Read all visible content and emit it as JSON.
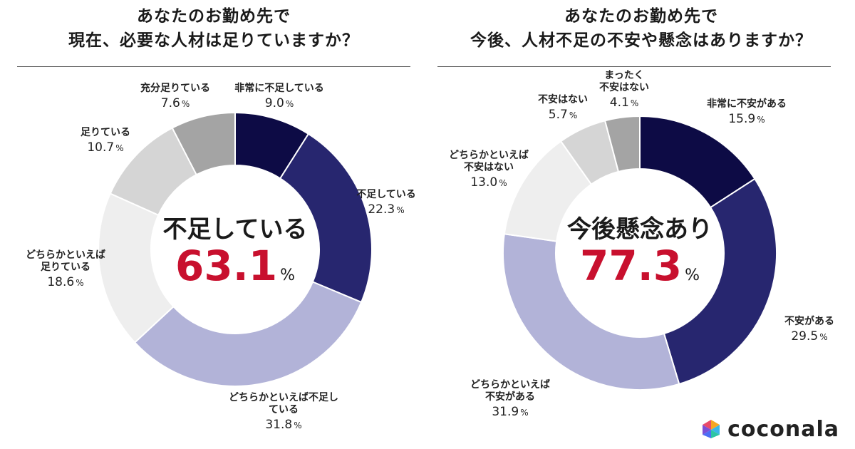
{
  "left": {
    "title_line1": "あなたのお勤め先で",
    "title_line2": "現在、必要な人材は足りていますか？",
    "center_label": "不足している",
    "center_value": "63.1",
    "center_unit": "%"
  },
  "right": {
    "title_line1": "あなたのお勤め先で",
    "title_line2": "今後、人材不足の不安や懸念はありますか？",
    "center_label": "今後懸念あり",
    "center_value": "77.3",
    "center_unit": "%"
  },
  "brand": {
    "name": "coconala"
  },
  "chart_data": [
    {
      "type": "pie",
      "variant": "donut",
      "title": "あなたのお勤め先で 現在、必要な人材は足りていますか？",
      "unit": "%",
      "slices": [
        {
          "label": "非常に不足している",
          "value": 9.0,
          "color": "#0d0b45"
        },
        {
          "label": "不足している",
          "value": 22.3,
          "color": "#27266f"
        },
        {
          "label": "どちらかといえば不足している",
          "value": 31.8,
          "color": "#b2b3d8"
        },
        {
          "label": "どちらかといえば足りている",
          "value": 18.6,
          "color": "#eeeeee"
        },
        {
          "label": "足りている",
          "value": 10.7,
          "color": "#d5d5d5"
        },
        {
          "label": "充分足りている",
          "value": 7.6,
          "color": "#a4a4a4"
        }
      ],
      "display_labels": [
        [
          "非常に不足している"
        ],
        [
          "不足している"
        ],
        [
          "どちらかといえば不足し",
          "ている"
        ],
        [
          "どちらかといえば",
          "足りている"
        ],
        [
          "足りている"
        ],
        [
          "充分足りている"
        ]
      ],
      "value_labels": [
        "9.0",
        "22.3",
        "31.8",
        "18.6",
        "10.7",
        "7.6"
      ]
    },
    {
      "type": "pie",
      "variant": "donut",
      "title": "あなたのお勤め先で 今後、人材不足の不安や懸念はありますか？",
      "unit": "%",
      "slices": [
        {
          "label": "非常に不安がある",
          "value": 15.9,
          "color": "#0d0b45"
        },
        {
          "label": "不安がある",
          "value": 29.5,
          "color": "#27266f"
        },
        {
          "label": "どちらかといえば不安がある",
          "value": 31.9,
          "color": "#b2b3d8"
        },
        {
          "label": "どちらかといえば不安はない",
          "value": 13.0,
          "color": "#eeeeee"
        },
        {
          "label": "不安はない",
          "value": 5.7,
          "color": "#d5d5d5"
        },
        {
          "label": "まったく不安はない",
          "value": 4.1,
          "color": "#a4a4a4"
        }
      ],
      "display_labels": [
        [
          "非常に不安がある"
        ],
        [
          "不安がある"
        ],
        [
          "どちらかといえば",
          "不安がある"
        ],
        [
          "どちらかといえば",
          "不安はない"
        ],
        [
          "不安はない"
        ],
        [
          "まったく",
          "不安はない"
        ]
      ],
      "value_labels": [
        "15.9",
        "29.5",
        "31.9",
        "13.0",
        "5.7",
        "4.1"
      ]
    }
  ]
}
